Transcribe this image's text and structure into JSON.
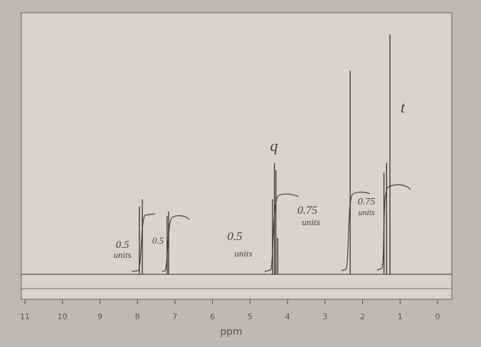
{
  "chart_data": {
    "type": "spectrum",
    "x_label": "ppm",
    "xlim": [
      11,
      0
    ],
    "xticks": [
      11,
      10,
      9,
      8,
      7,
      6,
      5,
      4,
      3,
      2,
      1,
      0
    ],
    "ylim": [
      0,
      100
    ],
    "color": "#333333",
    "peaks": {
      "x": [
        7.95,
        7.87,
        7.21,
        7.17,
        4.4,
        4.35,
        4.31,
        4.26,
        2.33,
        1.43,
        1.36,
        1.27
      ],
      "values": [
        28,
        31,
        24,
        26,
        31,
        46,
        43,
        15,
        84,
        42,
        46,
        99
      ]
    },
    "annotations": [
      "q",
      "t",
      "0.5",
      "units",
      "0.5",
      "0.5",
      "units",
      "0.75",
      "units",
      "0.75",
      "units"
    ]
  }
}
